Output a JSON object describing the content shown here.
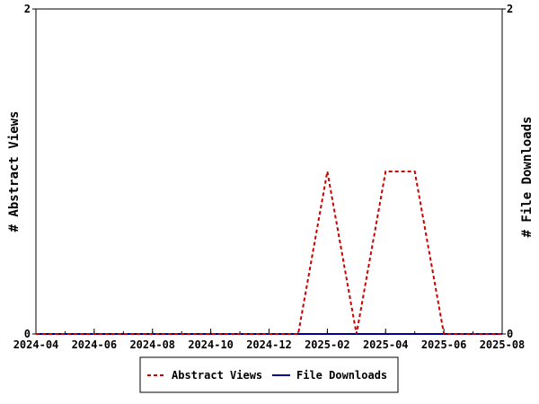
{
  "chart_data": {
    "type": "line",
    "title": "",
    "xlabel": "",
    "ylabel_left": "# Abstract Views",
    "ylabel_right": "# File Downloads",
    "x_tick_labels": [
      "2024-04",
      "2024-06",
      "2024-08",
      "2024-10",
      "2024-12",
      "2025-02",
      "2025-04",
      "2025-06",
      "2025-08"
    ],
    "y_left_ticks": [
      "0",
      "2"
    ],
    "y_right_ticks": [
      "0",
      "2"
    ],
    "ylim_left": [
      0,
      2
    ],
    "ylim_right": [
      0,
      2
    ],
    "xlim": [
      "2024-04",
      "2025-08"
    ],
    "grid": false,
    "legend_position": "bottom-center",
    "x": [
      "2024-04",
      "2024-05",
      "2024-06",
      "2024-07",
      "2024-08",
      "2024-09",
      "2024-10",
      "2024-11",
      "2024-12",
      "2025-01",
      "2025-02",
      "2025-03",
      "2025-04",
      "2025-05",
      "2025-06",
      "2025-07",
      "2025-08"
    ],
    "series": [
      {
        "name": "Abstract Views",
        "axis": "left",
        "color": "#cc0000",
        "style": "dashed",
        "values": [
          0,
          0,
          0,
          0,
          0,
          0,
          0,
          0,
          0,
          0,
          1,
          0,
          1,
          1,
          0,
          0,
          0
        ]
      },
      {
        "name": "File Downloads",
        "axis": "right",
        "color": "#000099",
        "style": "solid",
        "values": [
          0,
          0,
          0,
          0,
          0,
          0,
          0,
          0,
          0,
          0,
          0,
          0,
          0,
          0,
          0,
          0,
          0
        ]
      }
    ]
  }
}
